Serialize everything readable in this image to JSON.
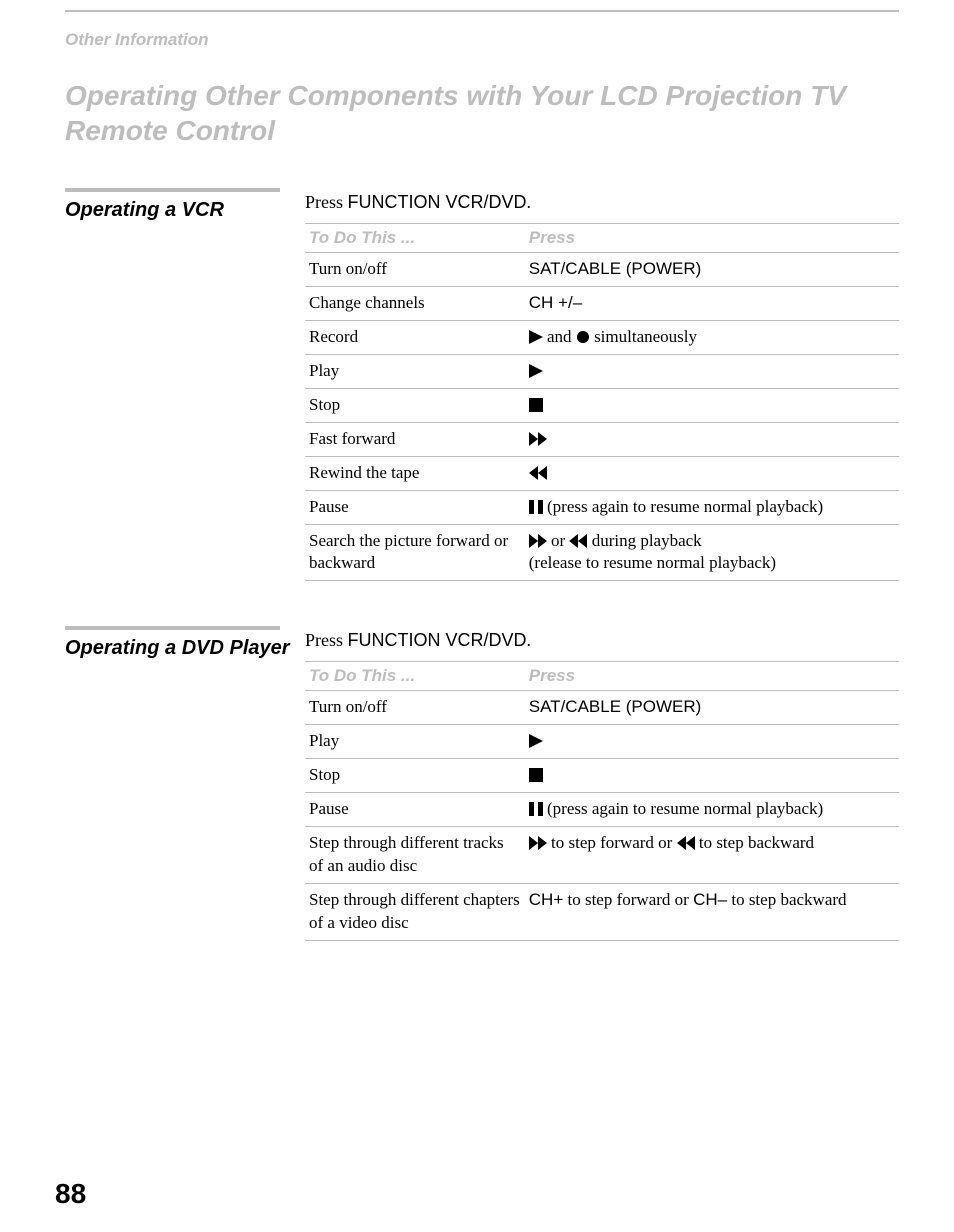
{
  "breadcrumb": "Other Information",
  "page_title": "Operating Other Components with Your LCD Projection TV Remote Control",
  "page_number": "88",
  "icons": {
    "play": "play-icon",
    "stop": "stop-icon",
    "ff": "fast-forward-icon",
    "rw": "rewind-icon",
    "pause": "pause-icon",
    "record": "record-icon"
  },
  "colors": {
    "muted_text": "#bdbdbd",
    "rule": "#bdbdbd",
    "body_text": "#000000",
    "background": "#ffffff"
  },
  "typography": {
    "title_fontsize": 28,
    "section_heading_fontsize": 20,
    "body_fontsize": 17,
    "page_number_fontsize": 28
  },
  "sections": [
    {
      "heading": "Operating a VCR",
      "intro_prefix": "Press ",
      "intro_sans": "FUNCTION VCR/DVD",
      "intro_suffix": ".",
      "table": {
        "header_action": "To Do This ...",
        "header_press": "Press",
        "column_widths": [
          "37%",
          "63%"
        ],
        "rows": [
          {
            "action": "Turn on/off",
            "press_type": "sans",
            "press_text": "SAT/CABLE (POWER)"
          },
          {
            "action": "Change channels",
            "press_type": "sans",
            "press_text": "CH +/–"
          },
          {
            "action": "Record",
            "press_type": "icons_text",
            "parts": [
              {
                "icon": "play"
              },
              {
                "text": " and "
              },
              {
                "icon": "record"
              },
              {
                "text": " simultaneously"
              }
            ]
          },
          {
            "action": "Play",
            "press_type": "icon",
            "icon": "play"
          },
          {
            "action": "Stop",
            "press_type": "icon",
            "icon": "stop"
          },
          {
            "action": "Fast forward",
            "press_type": "icon",
            "icon": "ff"
          },
          {
            "action": "Rewind the tape",
            "press_type": "icon",
            "icon": "rw"
          },
          {
            "action": "Pause",
            "press_type": "icons_text",
            "parts": [
              {
                "icon": "pause"
              },
              {
                "text": " (press again to resume normal playback)"
              }
            ]
          },
          {
            "action": "Search the picture forward or backward",
            "press_type": "icons_text",
            "parts": [
              {
                "icon": "ff"
              },
              {
                "text": " or "
              },
              {
                "icon": "rw"
              },
              {
                "text": " during playback"
              },
              {
                "break": true
              },
              {
                "text": "(release to resume normal playback)"
              }
            ]
          }
        ]
      }
    },
    {
      "heading": "Operating a DVD Player",
      "intro_prefix": "Press ",
      "intro_sans": "FUNCTION VCR/DVD",
      "intro_suffix": ".",
      "table": {
        "header_action": "To Do This ...",
        "header_press": "Press",
        "column_widths": [
          "37%",
          "63%"
        ],
        "rows": [
          {
            "action": "Turn on/off",
            "press_type": "sans",
            "press_text": "SAT/CABLE (POWER)"
          },
          {
            "action": "Play",
            "press_type": "icon",
            "icon": "play"
          },
          {
            "action": "Stop",
            "press_type": "icon",
            "icon": "stop"
          },
          {
            "action": "Pause",
            "press_type": "icons_text",
            "parts": [
              {
                "icon": "pause"
              },
              {
                "text": " (press again to resume normal playback)"
              }
            ]
          },
          {
            "action": "Step through different tracks of an audio disc",
            "press_type": "icons_text",
            "parts": [
              {
                "icon": "ff"
              },
              {
                "text": " to step forward or "
              },
              {
                "icon": "rw"
              },
              {
                "text": " to step backward"
              }
            ]
          },
          {
            "action": "Step through different chapters of a video disc",
            "press_type": "mixed_sans",
            "parts": [
              {
                "sans": "CH+"
              },
              {
                "text": " to step forward or "
              },
              {
                "sans": "CH–"
              },
              {
                "text": " to step backward"
              }
            ]
          }
        ]
      }
    }
  ]
}
